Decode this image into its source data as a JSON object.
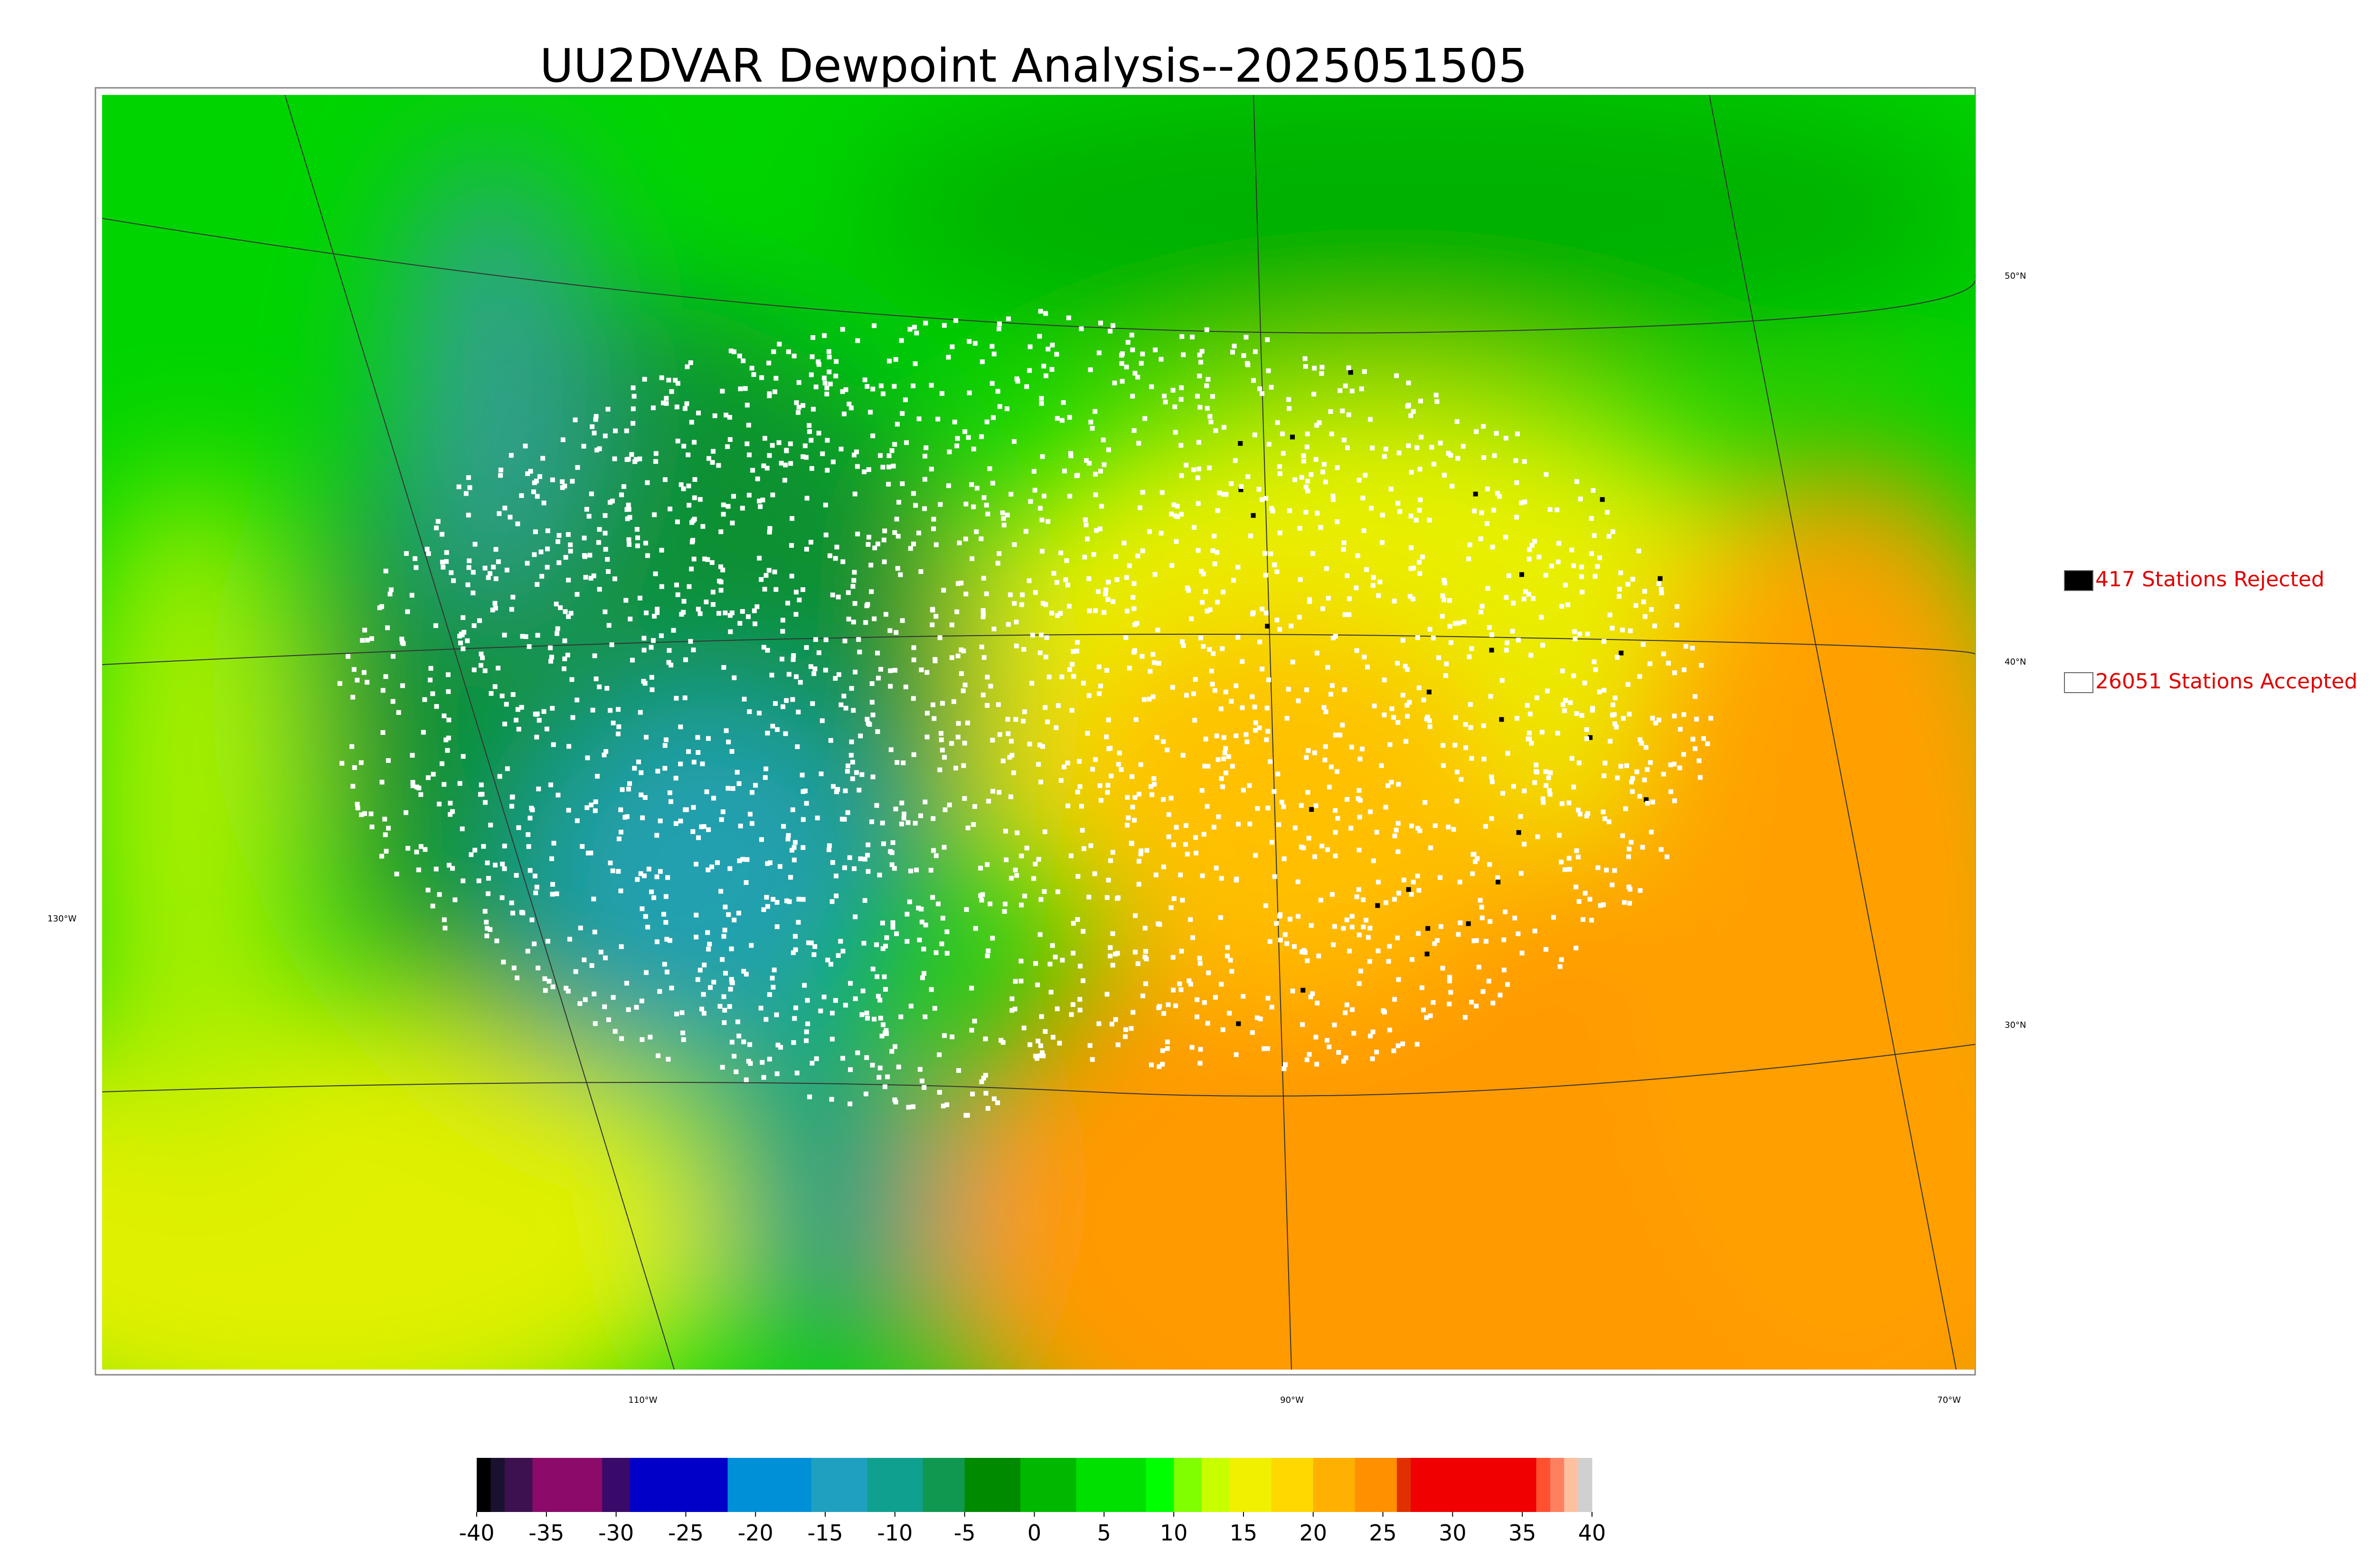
{
  "title": "UU2DVAR Dewpoint Analysis--2025051505",
  "legend": [
    {
      "label": "417 Stations Rejected",
      "color": "#000000"
    },
    {
      "label": "26051 Stations Accepted",
      "color": "#ffffff"
    }
  ],
  "colorbar": {
    "range": [
      -40,
      40
    ],
    "ticks": [
      -40,
      -35,
      -30,
      -25,
      -20,
      -15,
      -10,
      -5,
      0,
      5,
      10,
      15,
      20,
      25,
      30,
      35,
      40
    ],
    "bounds": [
      -40,
      -39,
      -38,
      -36,
      -31,
      -29,
      -22,
      -16,
      -12,
      -8,
      -5,
      -1,
      3,
      8,
      10,
      12,
      14,
      17,
      20,
      23,
      26,
      27,
      36,
      37,
      38,
      39,
      40
    ],
    "colors": [
      "#000000",
      "#1a1030",
      "#3d1050",
      "#8b0a6a",
      "#3a0a6a",
      "#0000c8",
      "#0090d8",
      "#20a0c0",
      "#10a090",
      "#109850",
      "#008a00",
      "#00b800",
      "#00e000",
      "#00ff00",
      "#80ff00",
      "#c8ff00",
      "#f0f000",
      "#ffd800",
      "#ffb000",
      "#ff9000",
      "#e03000",
      "#f00000",
      "#ff5030",
      "#ff8060",
      "#ffc0a0",
      "#d0d0d0"
    ]
  },
  "latitude_labels": [
    "50°N",
    "40°N",
    "30°N"
  ],
  "longitude_labels": [
    "130°W",
    "110°W",
    "90°W",
    "70°W"
  ]
}
